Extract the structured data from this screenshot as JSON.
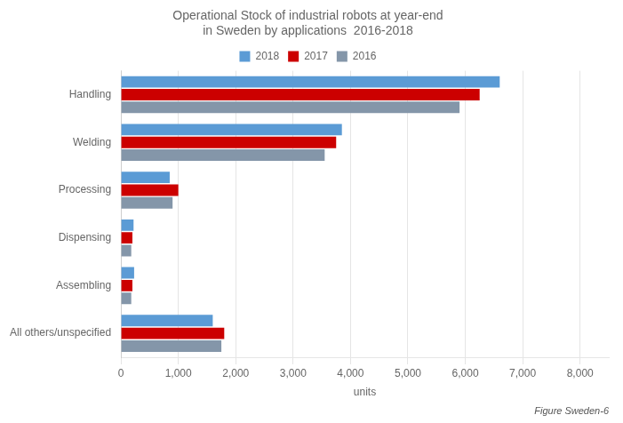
{
  "chart_data": {
    "type": "bar",
    "orientation": "horizontal",
    "title": "Operational Stock of industrial robots at year-end\nin Sweden by applications  2016-2018",
    "annotations": [
      "Figure Sweden-6"
    ],
    "xlabel": "units",
    "categories": [
      "Handling",
      "Welding",
      "Processing",
      "Dispensing",
      "Assembling",
      "All others/unspecified"
    ],
    "series": [
      {
        "name": "2018",
        "color": "#5B9BD5",
        "values": [
          6600,
          3850,
          850,
          220,
          230,
          1600
        ]
      },
      {
        "name": "2017",
        "color": "#CC0000",
        "values": [
          6250,
          3750,
          1000,
          200,
          200,
          1800
        ]
      },
      {
        "name": "2016",
        "color": "#8496A9",
        "values": [
          5900,
          3550,
          900,
          180,
          180,
          1750
        ]
      }
    ],
    "xlim": [
      0,
      8500
    ],
    "xticks": [
      0,
      {
        "value": 1000,
        "label": "1,000"
      },
      {
        "value": 2000,
        "label": "2,000"
      },
      {
        "value": 3000,
        "label": "3,000"
      },
      {
        "value": 4000,
        "label": "4,000"
      },
      {
        "value": 5000,
        "label": "5,000"
      },
      {
        "value": 6000,
        "label": "6,000"
      },
      {
        "value": 7000,
        "label": "7,000"
      },
      {
        "value": 8000,
        "label": "8,000"
      }
    ],
    "grid": true,
    "legend": "top"
  }
}
